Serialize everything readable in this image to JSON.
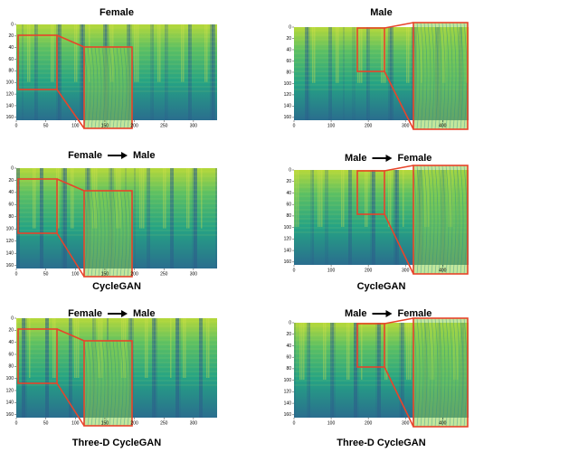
{
  "panels": [
    {
      "title": "Female",
      "xlim": [
        0,
        340
      ],
      "ylim": [
        0,
        165
      ],
      "xticks": [
        0,
        50,
        100,
        150,
        200,
        250,
        300
      ],
      "yticks": [
        0,
        20,
        40,
        60,
        80,
        100,
        120,
        140,
        160
      ]
    },
    {
      "title": {
        "source": "Female",
        "target": "Male"
      },
      "caption": "CycleGAN",
      "xlim": [
        0,
        340
      ],
      "ylim": [
        0,
        165
      ],
      "xticks": [
        0,
        50,
        100,
        150,
        200,
        250,
        300
      ],
      "yticks": [
        0,
        20,
        40,
        60,
        80,
        100,
        120,
        140,
        160
      ]
    },
    {
      "title": {
        "source": "Female",
        "target": "Male"
      },
      "caption": "Three-D CycleGAN",
      "xlim": [
        0,
        340
      ],
      "ylim": [
        0,
        165
      ],
      "xticks": [
        0,
        50,
        100,
        150,
        200,
        250,
        300
      ],
      "yticks": [
        0,
        20,
        40,
        60,
        80,
        100,
        120,
        140,
        160
      ]
    },
    {
      "title": "Male",
      "xlim": [
        0,
        470
      ],
      "ylim": [
        0,
        165
      ],
      "xticks": [
        0,
        100,
        200,
        300,
        400
      ],
      "yticks": [
        0,
        20,
        40,
        60,
        80,
        100,
        120,
        140,
        160
      ]
    },
    {
      "title": {
        "source": "Male",
        "target": "Female"
      },
      "caption": "CycleGAN",
      "xlim": [
        0,
        470
      ],
      "ylim": [
        0,
        165
      ],
      "xticks": [
        0,
        100,
        200,
        300,
        400
      ],
      "yticks": [
        0,
        20,
        40,
        60,
        80,
        100,
        120,
        140,
        160
      ]
    },
    {
      "title": {
        "source": "Male",
        "target": "Female"
      },
      "caption": "Three-D CycleGAN",
      "xlim": [
        0,
        470
      ],
      "ylim": [
        0,
        165
      ],
      "xticks": [
        0,
        100,
        200,
        300,
        400
      ],
      "yticks": [
        0,
        20,
        40,
        60,
        80,
        100,
        120,
        140,
        160
      ]
    }
  ]
}
